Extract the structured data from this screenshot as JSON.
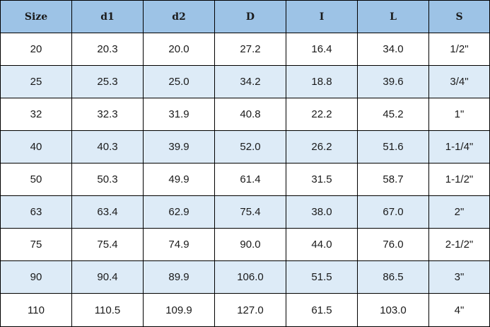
{
  "table": {
    "headers": [
      "Size",
      "d1",
      "d2",
      "D",
      "I",
      "L",
      "S"
    ],
    "rows": [
      [
        "20",
        "20.3",
        "20.0",
        "27.2",
        "16.4",
        "34.0",
        "1/2\""
      ],
      [
        "25",
        "25.3",
        "25.0",
        "34.2",
        "18.8",
        "39.6",
        "3/4\""
      ],
      [
        "32",
        "32.3",
        "31.9",
        "40.8",
        "22.2",
        "45.2",
        "1\""
      ],
      [
        "40",
        "40.3",
        "39.9",
        "52.0",
        "26.2",
        "51.6",
        "1-1/4\""
      ],
      [
        "50",
        "50.3",
        "49.9",
        "61.4",
        "31.5",
        "58.7",
        "1-1/2\""
      ],
      [
        "63",
        "63.4",
        "62.9",
        "75.4",
        "38.0",
        "67.0",
        "2\""
      ],
      [
        "75",
        "75.4",
        "74.9",
        "90.0",
        "44.0",
        "76.0",
        "2-1/2\""
      ],
      [
        "90",
        "90.4",
        "89.9",
        "106.0",
        "51.5",
        "86.5",
        "3\""
      ],
      [
        "110",
        "110.5",
        "109.9",
        "127.0",
        "61.5",
        "103.0",
        "4\""
      ]
    ],
    "colors": {
      "header_background": "#9dc3e6",
      "row_stripe": "#ddebf7",
      "row_plain": "#ffffff",
      "border": "#000000"
    }
  }
}
